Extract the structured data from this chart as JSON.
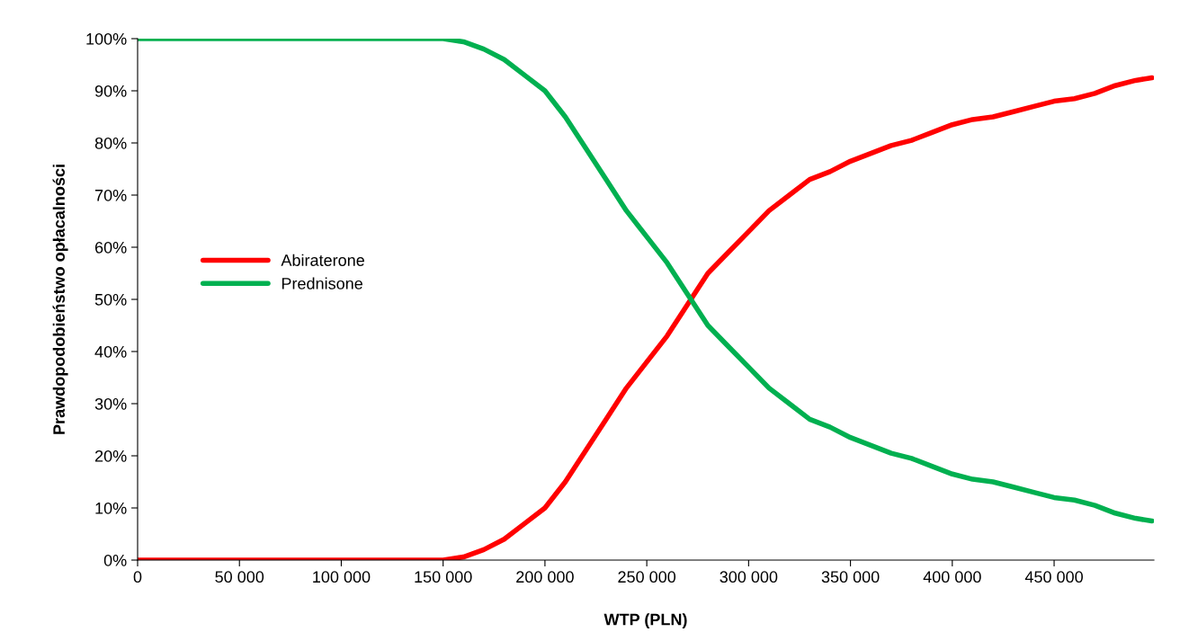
{
  "chart_data": {
    "type": "line",
    "xlabel": "WTP (PLN)",
    "ylabel": "Prawdopodobieństwo opłacalności",
    "x": [
      0,
      150000,
      160000,
      170000,
      180000,
      190000,
      200000,
      210000,
      220000,
      230000,
      240000,
      250000,
      260000,
      270000,
      280000,
      290000,
      300000,
      310000,
      320000,
      330000,
      340000,
      350000,
      360000,
      370000,
      380000,
      390000,
      400000,
      410000,
      420000,
      430000,
      440000,
      450000,
      460000,
      470000,
      480000,
      490000,
      498000
    ],
    "series": [
      {
        "name": "Abiraterone",
        "color": "#ff0000",
        "values": [
          0,
          0,
          0.6,
          2,
          4,
          7,
          10,
          15,
          21,
          27,
          33,
          38,
          43,
          49,
          55,
          59,
          63,
          67,
          70,
          73,
          74.5,
          76.5,
          78,
          79.5,
          80.5,
          82,
          83.5,
          84.5,
          85,
          86,
          87,
          88,
          88.5,
          89.5,
          91,
          92,
          92.5
        ]
      },
      {
        "name": "Prednisone",
        "color": "#00b050",
        "values": [
          100,
          100,
          99.4,
          98,
          96,
          93,
          90,
          85,
          79,
          73,
          67,
          62,
          57,
          51,
          45,
          41,
          37,
          33,
          30,
          27,
          25.5,
          23.5,
          22,
          20.5,
          19.5,
          18,
          16.5,
          15.5,
          15,
          14,
          13,
          12,
          11.5,
          10.5,
          9,
          8,
          7.5
        ]
      }
    ],
    "xlim": [
      0,
      499000
    ],
    "xticks": [
      {
        "value": 0,
        "label": "0"
      },
      {
        "value": 50000,
        "label": "50 000"
      },
      {
        "value": 100000,
        "label": "100 000"
      },
      {
        "value": 150000,
        "label": "150 000"
      },
      {
        "value": 200000,
        "label": "200 000"
      },
      {
        "value": 250000,
        "label": "250 000"
      },
      {
        "value": 300000,
        "label": "300 000"
      },
      {
        "value": 350000,
        "label": "350 000"
      },
      {
        "value": 400000,
        "label": "400 000"
      },
      {
        "value": 450000,
        "label": "450 000"
      }
    ],
    "ylim": [
      0,
      100
    ],
    "yticks": [
      {
        "value": 0,
        "label": "0%"
      },
      {
        "value": 10,
        "label": "10%"
      },
      {
        "value": 20,
        "label": "20%"
      },
      {
        "value": 30,
        "label": "30%"
      },
      {
        "value": 40,
        "label": "40%"
      },
      {
        "value": 50,
        "label": "50%"
      },
      {
        "value": 60,
        "label": "60%"
      },
      {
        "value": 70,
        "label": "70%"
      },
      {
        "value": 80,
        "label": "80%"
      },
      {
        "value": 90,
        "label": "90%"
      },
      {
        "value": 100,
        "label": "100%"
      }
    ],
    "legend": "center left",
    "grid": false,
    "marker": "none",
    "line_style": "solid"
  }
}
